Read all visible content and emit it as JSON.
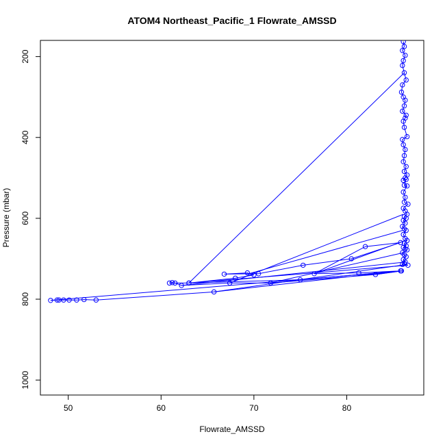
{
  "chart_data": {
    "type": "line",
    "title": "ATOM4 Northeast_Pacific_1 Flowrate_AMSSD",
    "xlabel": "Flowrate_AMSSD",
    "ylabel": "Pressure (mbar)",
    "xlim": [
      47.0,
      88.3
    ],
    "ylim": [
      1037,
      160
    ],
    "y_reversed": true,
    "x_ticks": [
      50,
      60,
      70,
      80
    ],
    "y_ticks": [
      200,
      400,
      600,
      800,
      1000
    ],
    "grid": false,
    "legend": "none",
    "series": [
      {
        "color": "#0000ff",
        "marker": "open-circle",
        "x": [
          86.1,
          86.2,
          86.0,
          86.3,
          86.1,
          86.0,
          86.2,
          86.4,
          86.0,
          85.9,
          86.1,
          86.3,
          86.2,
          86.0,
          86.4,
          86.3,
          86.1,
          86.2,
          86.5,
          86.0,
          86.1,
          86.3,
          86.2,
          86.1,
          86.4,
          86.2,
          86.5,
          86.3,
          86.1,
          86.4,
          86.2,
          86.5,
          86.1,
          86.3,
          86.2,
          86.6,
          86.1,
          86.3,
          86.5,
          86.2,
          86.4,
          86.1,
          86.3,
          86.0,
          86.2,
          86.4,
          86.1,
          86.3,
          86.5,
          86.2,
          86.4,
          86.1,
          86.3,
          86.5,
          86.0,
          86.2,
          86.4,
          86.1,
          86.3,
          86.0,
          86.2,
          86.6,
          63.0,
          68.0,
          70.0,
          69.3,
          66.8,
          70.5,
          75.3,
          80.5,
          85.8,
          82.0,
          76.5,
          81.3,
          85.9,
          83.1,
          71.8,
          67.4,
          62.2,
          61.5,
          61.2,
          60.9,
          63.0,
          75.0,
          85.8,
          65.7,
          53.0,
          51.7,
          50.9,
          50.1,
          49.5,
          49.0,
          48.8,
          48.1
        ],
        "y": [
          163,
          175,
          185,
          197,
          210,
          222,
          240,
          258,
          270,
          288,
          300,
          308,
          322,
          335,
          345,
          352,
          360,
          375,
          398,
          405,
          418,
          430,
          445,
          460,
          472,
          484,
          493,
          500,
          506,
          504,
          518,
          520,
          535,
          548,
          560,
          565,
          575,
          582,
          590,
          596,
          600,
          605,
          612,
          620,
          626,
          630,
          640,
          650,
          655,
          662,
          668,
          672,
          676,
          678,
          685,
          690,
          695,
          702,
          708,
          714,
          712,
          716,
          760,
          748,
          740,
          735,
          738,
          737,
          716,
          700,
          660,
          670,
          737,
          735,
          730,
          739,
          760,
          760,
          766,
          760,
          759,
          760,
          760,
          752,
          730,
          782,
          802,
          801,
          802,
          802,
          802,
          802,
          802,
          803
        ]
      }
    ],
    "extra_segments": [
      {
        "x": [
          86.2,
          63.0
        ],
        "y": [
          240,
          760
        ]
      },
      {
        "x": [
          86.1,
          67.4
        ],
        "y": [
          590,
          760
        ]
      },
      {
        "x": [
          86.0,
          69.3
        ],
        "y": [
          630,
          738
        ]
      },
      {
        "x": [
          86.3,
          76.5
        ],
        "y": [
          655,
          737
        ]
      },
      {
        "x": [
          86.1,
          71.8
        ],
        "y": [
          685,
          760
        ]
      },
      {
        "x": [
          86.4,
          62.2
        ],
        "y": [
          708,
          766
        ]
      },
      {
        "x": [
          86.5,
          65.7
        ],
        "y": [
          714,
          782
        ]
      },
      {
        "x": [
          86.0,
          83.1
        ],
        "y": [
          730,
          739
        ]
      },
      {
        "x": [
          86.1,
          48.1
        ],
        "y": [
          730,
          803
        ]
      }
    ]
  }
}
